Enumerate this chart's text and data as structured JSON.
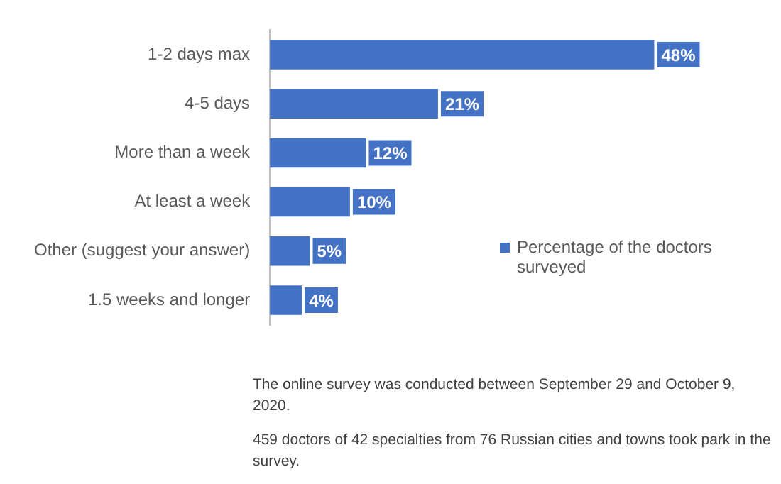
{
  "chart_data": {
    "type": "bar",
    "orientation": "horizontal",
    "categories": [
      "1-2 days max",
      "4-5 days",
      "More than a week",
      "At least a week",
      "Other (suggest your answer)",
      "1.5 weeks and longer"
    ],
    "series": [
      {
        "name": "Percentage of the doctors surveyed",
        "color": "#4472c4",
        "values": [
          48,
          21,
          12,
          10,
          5,
          4
        ],
        "value_labels": [
          "48%",
          "21%",
          "12%",
          "10%",
          "5%",
          "4%"
        ]
      }
    ],
    "legend": "right",
    "grid": false,
    "annotations": [
      "The online survey was conducted between September 29 and October 9, 2020.",
      "459 doctors of 42 specialties from 76 Russian cities and towns took park in the survey."
    ]
  }
}
